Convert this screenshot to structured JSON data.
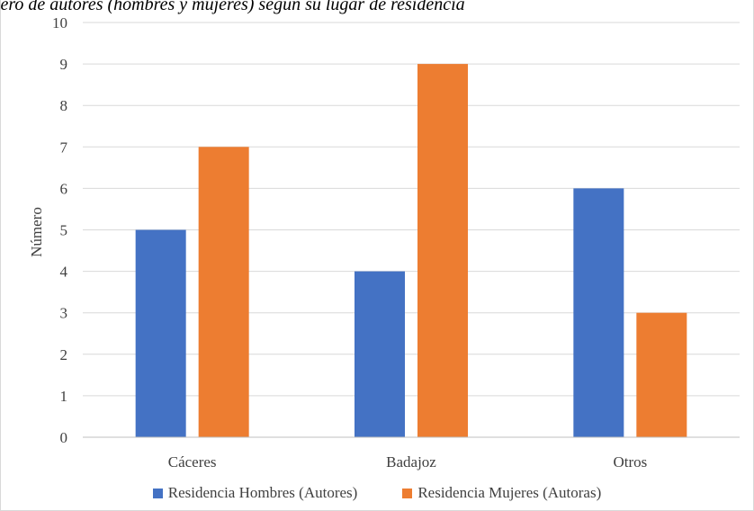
{
  "chart_data": {
    "type": "bar",
    "title": "mero de autores (hombres y mujeres) según su lugar de residencia",
    "xlabel": "",
    "ylabel": "Número",
    "categories": [
      "Cáceres",
      "Badajoz",
      "Otros"
    ],
    "series": [
      {
        "name": "Residencia Hombres (Autores)",
        "values": [
          5,
          4,
          6
        ],
        "color": "#4472c4"
      },
      {
        "name": "Residencia Mujeres (Autoras)",
        "values": [
          7,
          9,
          3
        ],
        "color": "#ed7d31"
      }
    ],
    "ylim": [
      0,
      10
    ],
    "yticks": [
      0,
      1,
      2,
      3,
      4,
      5,
      6,
      7,
      8,
      9,
      10
    ],
    "grid": true,
    "legend_position": "bottom",
    "gridline_color": "#d9d9d9"
  }
}
